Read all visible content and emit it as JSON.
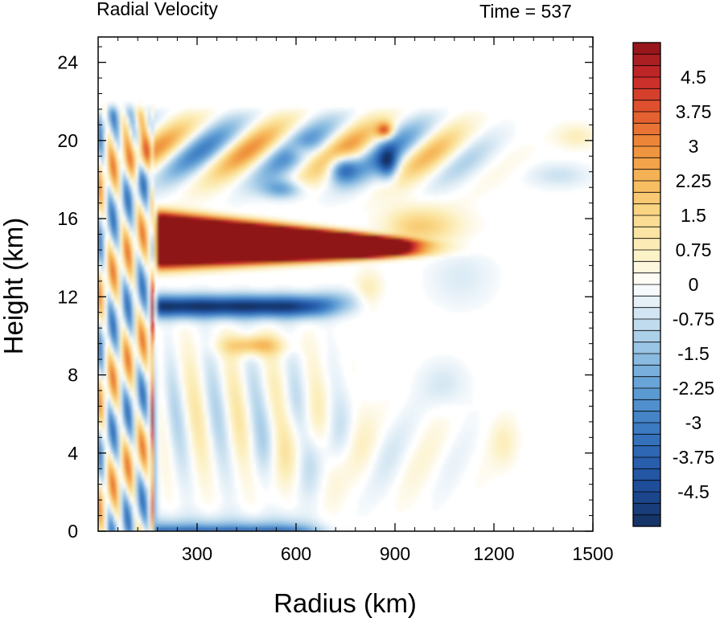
{
  "chart_data": {
    "type": "heatmap",
    "title": "Radial Velocity",
    "time_label": "Time = 537",
    "xlabel": "Radius (km)",
    "ylabel": "Height (km)",
    "xlim": [
      0,
      1500
    ],
    "ylim": [
      0,
      25.3
    ],
    "x_ticks": [
      300,
      600,
      900,
      1200,
      1500
    ],
    "y_ticks": [
      0,
      4,
      8,
      12,
      16,
      20,
      24
    ],
    "colorbar": {
      "min": -5.25,
      "max": 5.25,
      "step": 0.25,
      "labels": [
        "4.5",
        "3.75",
        "3",
        "2.25",
        "1.5",
        "0.75",
        "0",
        "-0.75",
        "-1.5",
        "-2.25",
        "-3",
        "-3.75",
        "-4.5"
      ],
      "label_values": [
        4.5,
        3.75,
        3,
        2.25,
        1.5,
        0.75,
        0,
        -0.75,
        -1.5,
        -2.25,
        -3,
        -3.75,
        -4.5
      ],
      "stops": [
        [
          -5.25,
          "#15305f"
        ],
        [
          -4.5,
          "#1c4a95"
        ],
        [
          -3.75,
          "#2a62b0"
        ],
        [
          -3.0,
          "#3f7fc4"
        ],
        [
          -2.25,
          "#619ed5"
        ],
        [
          -1.5,
          "#91c0e2"
        ],
        [
          -0.75,
          "#c9e0ef"
        ],
        [
          -0.3,
          "#eaf3f9"
        ],
        [
          0,
          "#ffffff"
        ],
        [
          0.3,
          "#fdf8e4"
        ],
        [
          0.75,
          "#fcefbd"
        ],
        [
          1.5,
          "#fad98a"
        ],
        [
          2.25,
          "#f6b85a"
        ],
        [
          3.0,
          "#ef8e3a"
        ],
        [
          3.75,
          "#e2582f"
        ],
        [
          4.5,
          "#c7282a"
        ],
        [
          5.25,
          "#8f1419"
        ]
      ]
    },
    "features": [
      {
        "name": "upper-level outflow jet",
        "r": [
          170,
          960
        ],
        "z": [
          13.1,
          16.5
        ],
        "value": 5.0
      },
      {
        "name": "inflow layer below outflow",
        "r": [
          170,
          680
        ],
        "z": [
          10.5,
          12.5
        ],
        "value": -4.3
      },
      {
        "name": "outflow band near 10 km",
        "r": [
          380,
          560
        ],
        "z": [
          9.0,
          10.0
        ],
        "value": 2.2
      },
      {
        "name": "boundary-layer inflow",
        "r": [
          160,
          640
        ],
        "z": [
          0,
          1.0
        ],
        "value": -3.5
      },
      {
        "name": "upper alternating bands",
        "r": [
          0,
          1500
        ],
        "z": [
          17,
          21.5
        ],
        "value": 3.0
      }
    ]
  }
}
